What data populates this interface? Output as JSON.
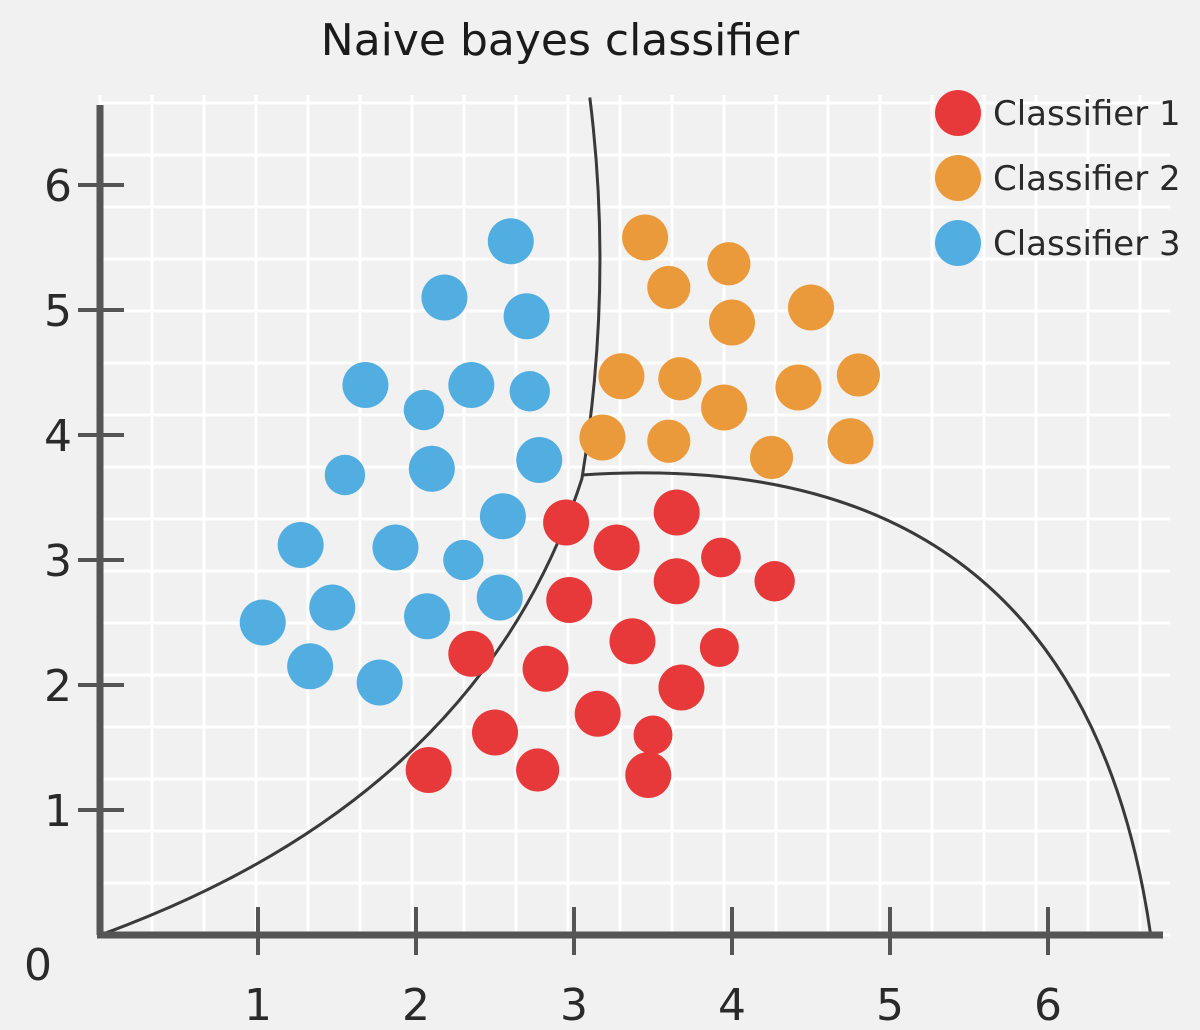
{
  "chart_data": {
    "type": "scatter",
    "title": "Naive bayes classifier",
    "xlabel": "",
    "ylabel": "",
    "xlim": [
      0,
      6.6
    ],
    "ylim": [
      0,
      6.6
    ],
    "x_ticks": [
      "1",
      "2",
      "3",
      "4",
      "5",
      "6"
    ],
    "y_ticks": [
      "1",
      "2",
      "3",
      "4",
      "5",
      "6"
    ],
    "origin_label": "0",
    "grid": true,
    "legend_position": "top-right",
    "colors": {
      "Classifier 1": "#e8393a",
      "Classifier 2": "#eb9a3b",
      "Classifier 3": "#52aee0",
      "axis": "#555555",
      "boundary": "#3a3a3a",
      "grid": "#ffffff"
    },
    "series": [
      {
        "name": "Classifier 1",
        "points": [
          [
            2.95,
            3.3,
            1.0
          ],
          [
            3.65,
            3.38,
            1.0
          ],
          [
            3.27,
            3.1,
            1.0
          ],
          [
            3.93,
            3.02,
            0.55
          ],
          [
            3.65,
            2.83,
            1.0
          ],
          [
            4.27,
            2.83,
            0.6
          ],
          [
            2.97,
            2.68,
            1.0
          ],
          [
            3.37,
            2.35,
            1.0
          ],
          [
            2.35,
            2.25,
            1.0
          ],
          [
            2.82,
            2.13,
            1.0
          ],
          [
            3.92,
            2.3,
            0.5
          ],
          [
            3.68,
            1.98,
            1.0
          ],
          [
            3.15,
            1.77,
            1.0
          ],
          [
            2.5,
            1.62,
            1.0
          ],
          [
            3.5,
            1.6,
            0.5
          ],
          [
            2.08,
            1.32,
            1.0
          ],
          [
            2.77,
            1.32,
            0.8
          ],
          [
            3.47,
            1.28,
            1.0
          ]
        ]
      },
      {
        "name": "Classifier 2",
        "points": [
          [
            3.45,
            5.58,
            1.0
          ],
          [
            3.98,
            5.37,
            0.8
          ],
          [
            3.6,
            5.18,
            0.8
          ],
          [
            4.5,
            5.02,
            1.0
          ],
          [
            4.0,
            4.9,
            1.0
          ],
          [
            3.3,
            4.47,
            1.0
          ],
          [
            3.67,
            4.45,
            0.8
          ],
          [
            4.42,
            4.38,
            1.0
          ],
          [
            4.8,
            4.48,
            0.8
          ],
          [
            3.95,
            4.22,
            1.0
          ],
          [
            3.18,
            3.98,
            1.0
          ],
          [
            3.6,
            3.95,
            0.8
          ],
          [
            4.25,
            3.82,
            0.8
          ],
          [
            4.75,
            3.95,
            1.0
          ]
        ]
      },
      {
        "name": "Classifier 3",
        "points": [
          [
            2.6,
            5.55,
            1.0
          ],
          [
            2.18,
            5.1,
            1.0
          ],
          [
            2.7,
            4.95,
            1.0
          ],
          [
            1.68,
            4.4,
            1.0
          ],
          [
            2.35,
            4.4,
            1.0
          ],
          [
            2.72,
            4.35,
            0.6
          ],
          [
            2.05,
            4.2,
            0.6
          ],
          [
            2.1,
            3.73,
            1.0
          ],
          [
            2.78,
            3.8,
            1.0
          ],
          [
            1.55,
            3.68,
            0.6
          ],
          [
            2.55,
            3.35,
            1.0
          ],
          [
            1.27,
            3.12,
            1.0
          ],
          [
            1.87,
            3.1,
            1.0
          ],
          [
            2.3,
            3.0,
            0.6
          ],
          [
            1.47,
            2.62,
            1.0
          ],
          [
            2.07,
            2.55,
            1.0
          ],
          [
            2.53,
            2.7,
            1.0
          ],
          [
            1.03,
            2.5,
            1.0
          ],
          [
            1.33,
            2.15,
            1.0
          ],
          [
            1.77,
            2.02,
            1.0
          ]
        ]
      }
    ]
  }
}
